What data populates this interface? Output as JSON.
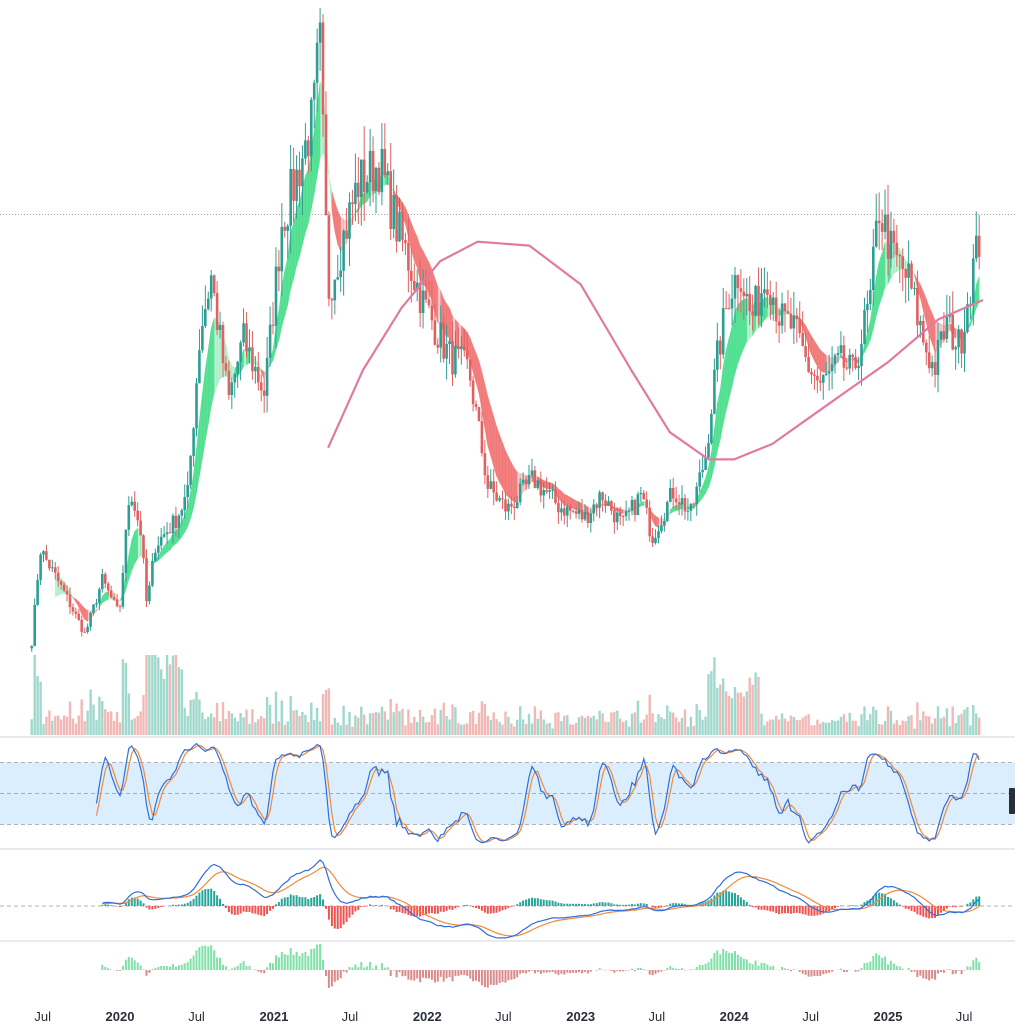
{
  "chart_data": {
    "type": "candlestick",
    "title": "",
    "interval": "weekly",
    "date_range": [
      "2019-06",
      "2025-08"
    ],
    "x_axis_labels": [
      {
        "date": "2019-07-01",
        "label": "Jul",
        "bold": false
      },
      {
        "date": "2020-01-01",
        "label": "2020",
        "bold": true
      },
      {
        "date": "2020-07-01",
        "label": "Jul",
        "bold": false
      },
      {
        "date": "2021-01-01",
        "label": "2021",
        "bold": true
      },
      {
        "date": "2021-07-01",
        "label": "Jul",
        "bold": false
      },
      {
        "date": "2022-01-01",
        "label": "2022",
        "bold": true
      },
      {
        "date": "2022-07-01",
        "label": "Jul",
        "bold": false
      },
      {
        "date": "2023-01-01",
        "label": "2023",
        "bold": true
      },
      {
        "date": "2023-07-01",
        "label": "Jul",
        "bold": false
      },
      {
        "date": "2024-01-01",
        "label": "2024",
        "bold": true
      },
      {
        "date": "2024-07-01",
        "label": "Jul",
        "bold": false
      },
      {
        "date": "2025-01-01",
        "label": "2025",
        "bold": true
      },
      {
        "date": "2025-07-01",
        "label": "Jul",
        "bold": false
      }
    ],
    "price_path_close": [
      [
        "2019-06-05",
        20
      ],
      [
        "2019-06-25",
        44
      ],
      [
        "2019-08-20",
        33
      ],
      [
        "2019-10-10",
        22
      ],
      [
        "2019-11-20",
        36
      ],
      [
        "2019-12-30",
        27
      ],
      [
        "2020-01-25",
        60
      ],
      [
        "2020-02-20",
        48
      ],
      [
        "2020-03-05",
        29
      ],
      [
        "2020-03-25",
        45
      ],
      [
        "2020-05-10",
        51
      ],
      [
        "2020-06-10",
        58
      ],
      [
        "2020-07-10",
        100
      ],
      [
        "2020-08-05",
        114
      ],
      [
        "2020-09-15",
        82
      ],
      [
        "2020-10-20",
        98
      ],
      [
        "2020-12-10",
        84
      ],
      [
        "2021-01-20",
        128
      ],
      [
        "2021-02-25",
        140
      ],
      [
        "2021-04-05",
        155
      ],
      [
        "2021-04-20",
        176
      ],
      [
        "2021-05-10",
        110
      ],
      [
        "2021-06-10",
        122
      ],
      [
        "2021-07-20",
        138
      ],
      [
        "2021-09-10",
        143
      ],
      [
        "2021-10-20",
        127
      ],
      [
        "2021-12-20",
        108
      ],
      [
        "2022-02-20",
        94
      ],
      [
        "2022-04-10",
        90
      ],
      [
        "2022-05-25",
        60
      ],
      [
        "2022-07-10",
        54
      ],
      [
        "2022-09-10",
        62
      ],
      [
        "2022-11-10",
        55
      ],
      [
        "2023-01-10",
        52
      ],
      [
        "2023-02-20",
        58
      ],
      [
        "2023-04-10",
        50
      ],
      [
        "2023-05-25",
        58
      ],
      [
        "2023-06-20",
        47
      ],
      [
        "2023-08-10",
        59
      ],
      [
        "2023-09-20",
        53
      ],
      [
        "2023-10-25",
        68
      ],
      [
        "2023-11-20",
        92
      ],
      [
        "2023-12-20",
        110
      ],
      [
        "2024-01-15",
        116
      ],
      [
        "2024-02-10",
        103
      ],
      [
        "2024-03-20",
        115
      ],
      [
        "2024-04-20",
        103
      ],
      [
        "2024-05-20",
        101
      ],
      [
        "2024-06-25",
        91
      ],
      [
        "2024-07-25",
        86
      ],
      [
        "2024-09-10",
        92
      ],
      [
        "2024-10-10",
        89
      ],
      [
        "2024-11-20",
        108
      ],
      [
        "2024-12-10",
        132
      ],
      [
        "2025-01-10",
        120
      ],
      [
        "2025-02-20",
        113
      ],
      [
        "2025-03-25",
        98
      ],
      [
        "2025-04-20",
        90
      ],
      [
        "2025-05-20",
        102
      ],
      [
        "2025-06-20",
        96
      ],
      [
        "2025-07-20",
        115
      ],
      [
        "2025-08-10",
        125
      ]
    ],
    "price_ylim": [
      0,
      180
    ],
    "reference_price_line": 130,
    "moving_average": {
      "name": "",
      "color": "#e07aa3",
      "points": [
        [
          "2021-05-10",
          70
        ],
        [
          "2021-08-01",
          90
        ],
        [
          "2021-11-01",
          106
        ],
        [
          "2022-02-01",
          118
        ],
        [
          "2022-05-01",
          123
        ],
        [
          "2022-09-01",
          122
        ],
        [
          "2023-01-01",
          112
        ],
        [
          "2023-05-01",
          90
        ],
        [
          "2023-08-01",
          74
        ],
        [
          "2023-11-01",
          67
        ],
        [
          "2024-01-01",
          67
        ],
        [
          "2024-04-01",
          71
        ],
        [
          "2024-07-01",
          78
        ],
        [
          "2024-10-01",
          85
        ],
        [
          "2025-01-01",
          92
        ],
        [
          "2025-05-01",
          103
        ],
        [
          "2025-08-15",
          108
        ]
      ]
    },
    "cloud_colors": {
      "up": "#3ddc84",
      "down": "#f06a6a"
    },
    "candle_colors": {
      "up": "#2e9e93",
      "down": "#e0615f"
    },
    "volume_colors": {
      "up": "#9fd8cc",
      "down": "#f2b8b6"
    },
    "stochastic": {
      "k_color": "#2f6fdb",
      "d_color": "#f08a3e",
      "overbought": 80,
      "oversold": 20,
      "band_fill": "#dbeefe",
      "range": [
        0,
        100
      ]
    },
    "macd": {
      "macd_color": "#2f6fdb",
      "signal_color": "#f08a3e",
      "hist_up": "#26a69a",
      "hist_down": "#ef5350"
    },
    "momentum_histogram": {
      "up": "#7fe0a8",
      "down": "#d98a8a"
    }
  }
}
